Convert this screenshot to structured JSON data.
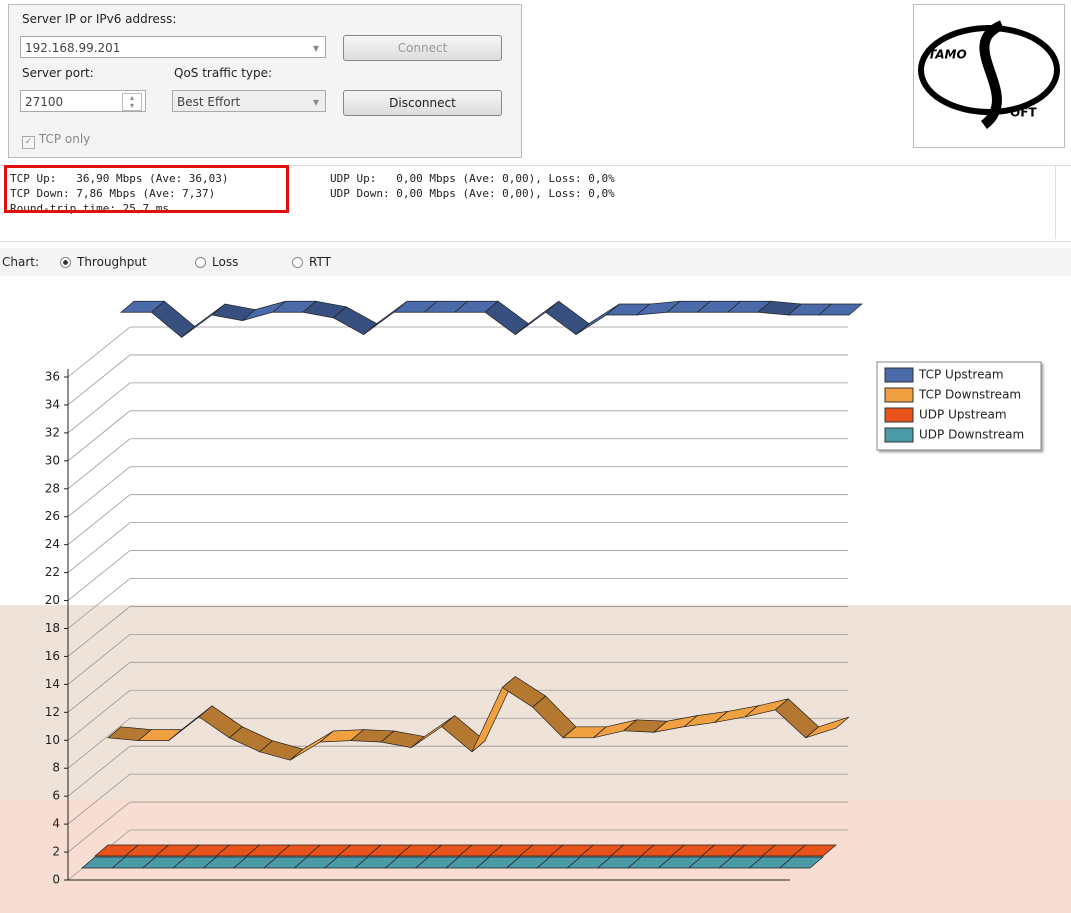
{
  "connection": {
    "server_label": "Server IP or IPv6  address:",
    "server_ip": "192.168.99.201",
    "connect": "Connect",
    "port_label": "Server port:",
    "port": "27100",
    "qos_label": "QoS traffic type:",
    "qos": "Best Effort",
    "disconnect": "Disconnect",
    "tcp_only": "TCP only"
  },
  "logo": {
    "line1": "TAMO",
    "line2": "OFT"
  },
  "stats": {
    "tcp_up": "TCP Up:   36,90 Mbps (Ave: 36,03)",
    "tcp_down": "TCP Down: 7,86 Mbps (Ave: 7,37)",
    "udp_up": "UDP Up:   0,00 Mbps (Ave: 0,00), Loss: 0,0%",
    "udp_down": "UDP Down: 0,00 Mbps (Ave: 0,00), Loss: 0,0%",
    "rtt": "Round-trip time: 25,7 ms"
  },
  "chart_options": {
    "label": "Chart:",
    "options": [
      "Throughput",
      "Loss",
      "RTT"
    ],
    "selected": 0
  },
  "chart_data": {
    "type": "ribbon",
    "ylim": [
      0,
      36
    ],
    "yticks": [
      0,
      2,
      4,
      6,
      8,
      10,
      12,
      14,
      16,
      18,
      20,
      22,
      24,
      26,
      28,
      30,
      32,
      34,
      36
    ],
    "grid": true,
    "legend": "top-right",
    "series": [
      {
        "name": "TCP Upstream",
        "color": "#4a6aaa",
        "values": [
          37.2,
          37.2,
          35.4,
          37.0,
          36.6,
          37.2,
          37.2,
          36.8,
          35.6,
          37.2,
          37.2,
          37.2,
          37.2,
          35.6,
          37.2,
          35.6,
          37.0,
          37.0,
          37.2,
          37.2,
          37.2,
          37.2,
          37.0,
          37.0,
          37.0
        ]
      },
      {
        "name": "TCP Downstream",
        "color": "#f0a040",
        "values": [
          7.6,
          7.4,
          7.4,
          9.1,
          7.6,
          6.6,
          6.0,
          7.3,
          7.4,
          7.3,
          6.9,
          8.4,
          6.6,
          11.2,
          9.8,
          7.6,
          7.6,
          8.1,
          8.0,
          8.4,
          8.7,
          9.1,
          9.6,
          7.6,
          8.3
        ]
      },
      {
        "name": "UDP Upstream",
        "color": "#e8531c",
        "values": [
          0,
          0,
          0,
          0,
          0,
          0,
          0,
          0,
          0,
          0,
          0,
          0,
          0,
          0,
          0,
          0,
          0,
          0,
          0,
          0,
          0,
          0,
          0,
          0,
          0
        ]
      },
      {
        "name": "UDP Downstream",
        "color": "#4a9aa8",
        "values": [
          0,
          0,
          0,
          0,
          0,
          0,
          0,
          0,
          0,
          0,
          0,
          0,
          0,
          0,
          0,
          0,
          0,
          0,
          0,
          0,
          0,
          0,
          0,
          0,
          0
        ]
      }
    ]
  }
}
